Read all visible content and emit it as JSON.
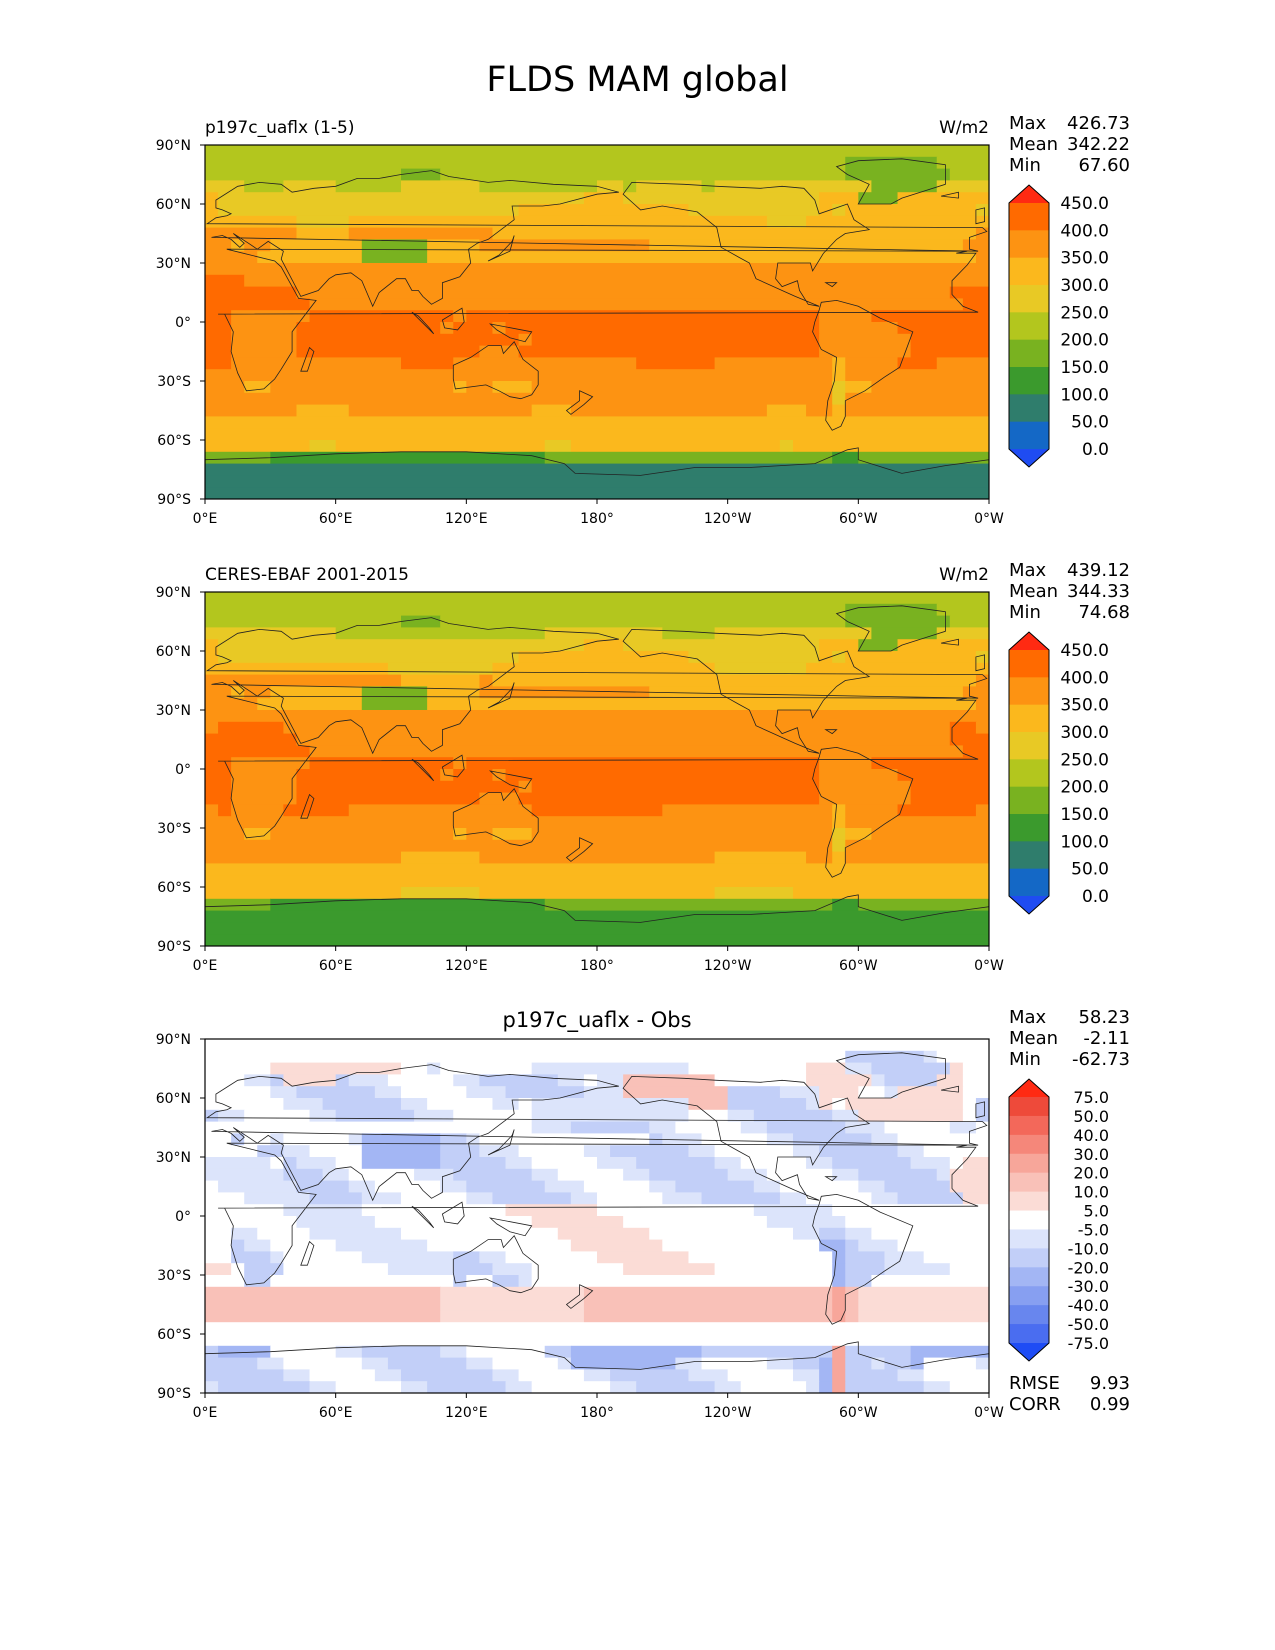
{
  "title": "FLDS MAM global",
  "lon_ticks": [
    "0°E",
    "60°E",
    "120°E",
    "180°",
    "120°W",
    "60°W",
    "0°W"
  ],
  "lat_ticks": [
    "90°N",
    "60°N",
    "30°N",
    "0°",
    "30°S",
    "60°S",
    "90°S"
  ],
  "panels": [
    {
      "left_title": "p197c_uaflx (1-5)",
      "center_title": "",
      "units": "W/m2",
      "stats": [
        {
          "label": "Max",
          "value": "426.73"
        },
        {
          "label": "Mean",
          "value": "342.22"
        },
        {
          "label": "Min",
          "value": "67.60"
        }
      ],
      "colorbar": {
        "levels": [
          "450.0",
          "400.0",
          "350.0",
          "300.0",
          "250.0",
          "200.0",
          "150.0",
          "100.0",
          "50.0",
          "0.0"
        ],
        "colors": [
          "#ff2a12",
          "#ff6a00",
          "#fd9312",
          "#fbb81d",
          "#e8c925",
          "#b3c61e",
          "#79b220",
          "#3b9a2d",
          "#2f7d6c",
          "#1468c6",
          "#1f4cf2"
        ]
      },
      "field": "abs_model"
    },
    {
      "left_title": "CERES-EBAF 2001-2015",
      "center_title": "",
      "units": "W/m2",
      "stats": [
        {
          "label": "Max",
          "value": "439.12"
        },
        {
          "label": "Mean",
          "value": "344.33"
        },
        {
          "label": "Min",
          "value": "74.68"
        }
      ],
      "colorbar": {
        "levels": [
          "450.0",
          "400.0",
          "350.0",
          "300.0",
          "250.0",
          "200.0",
          "150.0",
          "100.0",
          "50.0",
          "0.0"
        ],
        "colors": [
          "#ff2a12",
          "#ff6a00",
          "#fd9312",
          "#fbb81d",
          "#e8c925",
          "#b3c61e",
          "#79b220",
          "#3b9a2d",
          "#2f7d6c",
          "#1468c6",
          "#1f4cf2"
        ]
      },
      "field": "abs_obs"
    },
    {
      "left_title": "",
      "center_title": "p197c_uaflx - Obs",
      "units": "",
      "stats": [
        {
          "label": "Max",
          "value": "58.23"
        },
        {
          "label": "Mean",
          "value": "-2.11"
        },
        {
          "label": "Min",
          "value": "-62.73"
        }
      ],
      "colorbar": {
        "levels": [
          "75.0",
          "50.0",
          "40.0",
          "30.0",
          "20.0",
          "10.0",
          "5.0",
          "-5.0",
          "-10.0",
          "-20.0",
          "-30.0",
          "-40.0",
          "-50.0",
          "-75.0"
        ],
        "colors": [
          "#ff2a12",
          "#ee4a3a",
          "#f3685a",
          "#f5877a",
          "#f7a69a",
          "#f9c1b8",
          "#fbdcd6",
          "#ffffff",
          "#dce4fb",
          "#c2cff8",
          "#a3b6f4",
          "#879ff1",
          "#6886ee",
          "#4a6df0",
          "#1e4cf5"
        ]
      },
      "field": "diff",
      "bottom_stats": [
        {
          "label": "RMSE",
          "value": "9.93"
        },
        {
          "label": "CORR",
          "value": "0.99"
        }
      ]
    }
  ]
}
